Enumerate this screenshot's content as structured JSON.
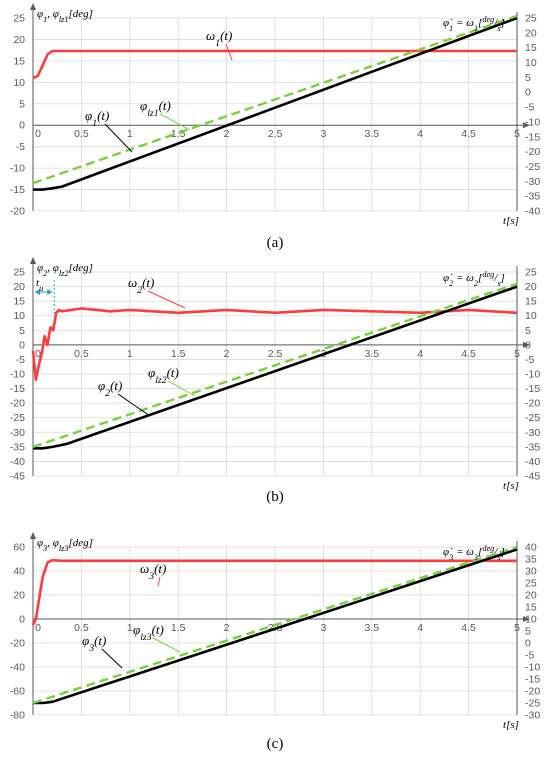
{
  "colors": {
    "omega": "#ff3b3b",
    "phi": "#000000",
    "phi_lz": "#77d13b",
    "t_u": "#2e9bd6",
    "grid": "#d9d9d9",
    "axis": "#595959"
  },
  "chart_data": [
    {
      "type": "line",
      "caption": "(a)",
      "left_axis_label": "φ₁, φlz1[deg]",
      "right_axis_label": "φ̇₁ = ω₁[deg/s]",
      "xlabel": "t[s]",
      "xlim": [
        0,
        5
      ],
      "ylim_left": [
        -20,
        25
      ],
      "ylim_right": [
        -40,
        25
      ],
      "x_ticks": [
        "0",
        "0.5",
        "1",
        "1.5",
        "2",
        "2.5",
        "3",
        "3.5",
        "4",
        "4.5",
        "5"
      ],
      "left_ticks": [
        "25",
        "20",
        "15",
        "10",
        "5",
        "0",
        "-5",
        "-10",
        "-15",
        "-20"
      ],
      "right_ticks": [
        "25",
        "20",
        "15",
        "10",
        "5",
        "0",
        "-5",
        "-10",
        "-15",
        "-20",
        "-25",
        "-30",
        "-35",
        "-40"
      ],
      "series": [
        {
          "name": "ω₁(t)",
          "axis": "left",
          "color": "#ff3b3b",
          "x": [
            0,
            0.05,
            0.1,
            0.15,
            0.2,
            0.3,
            1,
            2,
            3,
            4,
            5
          ],
          "y": [
            11,
            11.5,
            14,
            16.5,
            17.3,
            17.3,
            17.3,
            17.3,
            17.3,
            17.3,
            17.3
          ]
        },
        {
          "name": "φ₁(t)",
          "axis": "left",
          "color": "#000000",
          "x": [
            0,
            0.1,
            0.2,
            0.3,
            5
          ],
          "y": [
            -15,
            -15,
            -14.7,
            -14.3,
            25
          ]
        },
        {
          "name": "φlz1(t)",
          "axis": "left",
          "color": "#77d13b",
          "dashed": true,
          "x": [
            0,
            5
          ],
          "y": [
            -13.5,
            25.5
          ]
        }
      ],
      "annotations": {
        "omega": "ω₁(t)",
        "phi": "φ₁(t)",
        "phi_lz": "φlz1(t)"
      }
    },
    {
      "type": "line",
      "caption": "(b)",
      "left_axis_label": "φ₂, φlz2[deg]",
      "right_axis_label": "φ̇₂ = ω₂[deg/s]",
      "xlabel": "t[s]",
      "xlim": [
        0,
        5
      ],
      "ylim_left": [
        -45,
        25
      ],
      "ylim_right": [
        -45,
        25
      ],
      "x_ticks": [
        "0",
        "0.5",
        "1",
        "1.5",
        "2",
        "2.5",
        "3",
        "3.5",
        "4",
        "4.5",
        "5"
      ],
      "left_ticks": [
        "25",
        "20",
        "15",
        "10",
        "5",
        "0",
        "-5",
        "-10",
        "-15",
        "-20",
        "-25",
        "-30",
        "-35",
        "-40",
        "-45"
      ],
      "right_ticks": [
        "25",
        "20",
        "15",
        "10",
        "5",
        "0",
        "-5",
        "-10",
        "-15",
        "-20",
        "-25",
        "-30",
        "-35",
        "-40",
        "-45"
      ],
      "t_u_label": "tu",
      "t_u_x": 0.22,
      "series": [
        {
          "name": "ω₂(t)",
          "axis": "left",
          "color": "#ff3b3b",
          "x": [
            0,
            0.03,
            0.06,
            0.09,
            0.12,
            0.15,
            0.18,
            0.21,
            0.24,
            0.27,
            0.3,
            0.5,
            0.8,
            1.0,
            1.5,
            2.0,
            2.5,
            3.0,
            3.5,
            4.0,
            4.5,
            5.0
          ],
          "y": [
            -2,
            -12,
            -7,
            -3,
            3,
            0,
            6,
            5,
            11,
            12,
            11.5,
            12.5,
            11.5,
            12,
            11,
            12,
            11,
            12,
            11.5,
            11,
            12,
            11
          ]
        },
        {
          "name": "φ₂(t)",
          "axis": "left",
          "color": "#000000",
          "x": [
            0,
            0.1,
            0.2,
            0.35,
            5
          ],
          "y": [
            -35.5,
            -35.5,
            -35,
            -34,
            20
          ]
        },
        {
          "name": "φlz2(t)",
          "axis": "left",
          "color": "#77d13b",
          "dashed": true,
          "x": [
            0,
            5
          ],
          "y": [
            -35,
            21
          ]
        }
      ],
      "annotations": {
        "omega": "ω₂(t)",
        "phi": "φ₂(t)",
        "phi_lz": "φlz2(t)"
      }
    },
    {
      "type": "line",
      "caption": "(c)",
      "left_axis_label": "φ₃, φlz3[deg]",
      "right_axis_label": "φ̇₃ = ω₃[deg/s]",
      "xlabel": "t[s]",
      "xlim": [
        0,
        5
      ],
      "ylim_left": [
        -80,
        60
      ],
      "ylim_right": [
        -30,
        40
      ],
      "x_ticks": [
        "0",
        "0.5",
        "1",
        "1.5",
        "2",
        "2.5",
        "3",
        "3.5",
        "4",
        "4.5",
        "5"
      ],
      "left_ticks": [
        "60",
        "40",
        "20",
        "0",
        "-20",
        "-40",
        "-60",
        "-80"
      ],
      "right_ticks": [
        "40",
        "35",
        "30",
        "25",
        "20",
        "15",
        "10",
        "5",
        "0",
        "-5",
        "-10",
        "-15",
        "-20",
        "-25",
        "-30"
      ],
      "series": [
        {
          "name": "ω₃(t)",
          "axis": "left",
          "color": "#ff3b3b",
          "x": [
            0,
            0.03,
            0.06,
            0.1,
            0.15,
            0.2,
            0.3,
            1,
            2,
            3,
            4,
            5
          ],
          "y": [
            -5,
            0,
            15,
            35,
            47,
            49,
            48.5,
            48.5,
            48.5,
            48.5,
            48.5,
            48.5
          ]
        },
        {
          "name": "φ₃(t)",
          "axis": "left",
          "color": "#000000",
          "x": [
            0,
            0.1,
            0.2,
            5
          ],
          "y": [
            -70,
            -70,
            -69,
            58
          ]
        },
        {
          "name": "φlz3(t)",
          "axis": "left",
          "color": "#77d13b",
          "dashed": true,
          "x": [
            0,
            5
          ],
          "y": [
            -70,
            60
          ]
        }
      ],
      "annotations": {
        "omega": "ω₃(t)",
        "phi": "φ₃(t)",
        "phi_lz": "φlz3(t)"
      }
    }
  ]
}
